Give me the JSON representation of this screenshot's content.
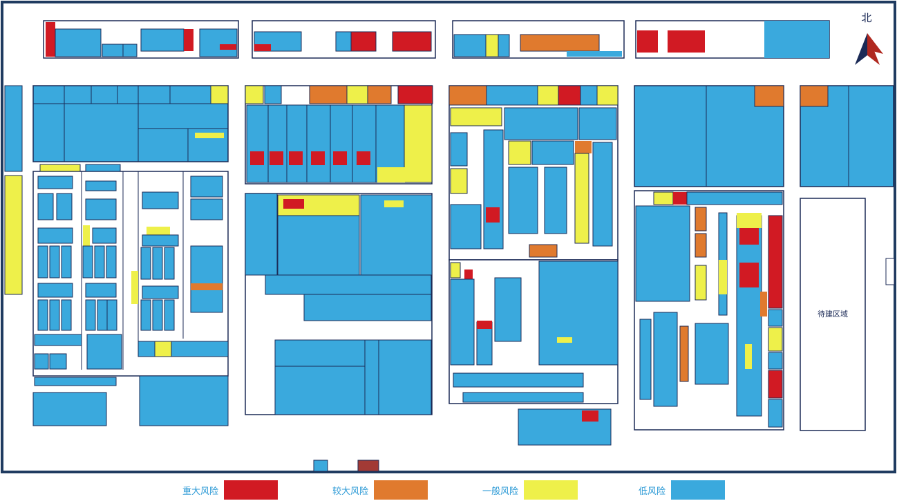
{
  "colors": {
    "major": "#d11a23",
    "high": "#e07a2e",
    "medium": "#eef04a",
    "low": "#3aa9dd",
    "outline": "#1b2a56",
    "frame": "#1f3b60"
  },
  "compass": {
    "label": "北",
    "icon": "north-arrow-icon"
  },
  "legend": [
    {
      "label": "重大风险",
      "level": "major"
    },
    {
      "label": "较大风险",
      "level": "high"
    },
    {
      "label": "一般风险",
      "level": "medium"
    },
    {
      "label": "低风险",
      "level": "low"
    }
  ],
  "zones": {
    "restricted": "待建区域"
  }
}
